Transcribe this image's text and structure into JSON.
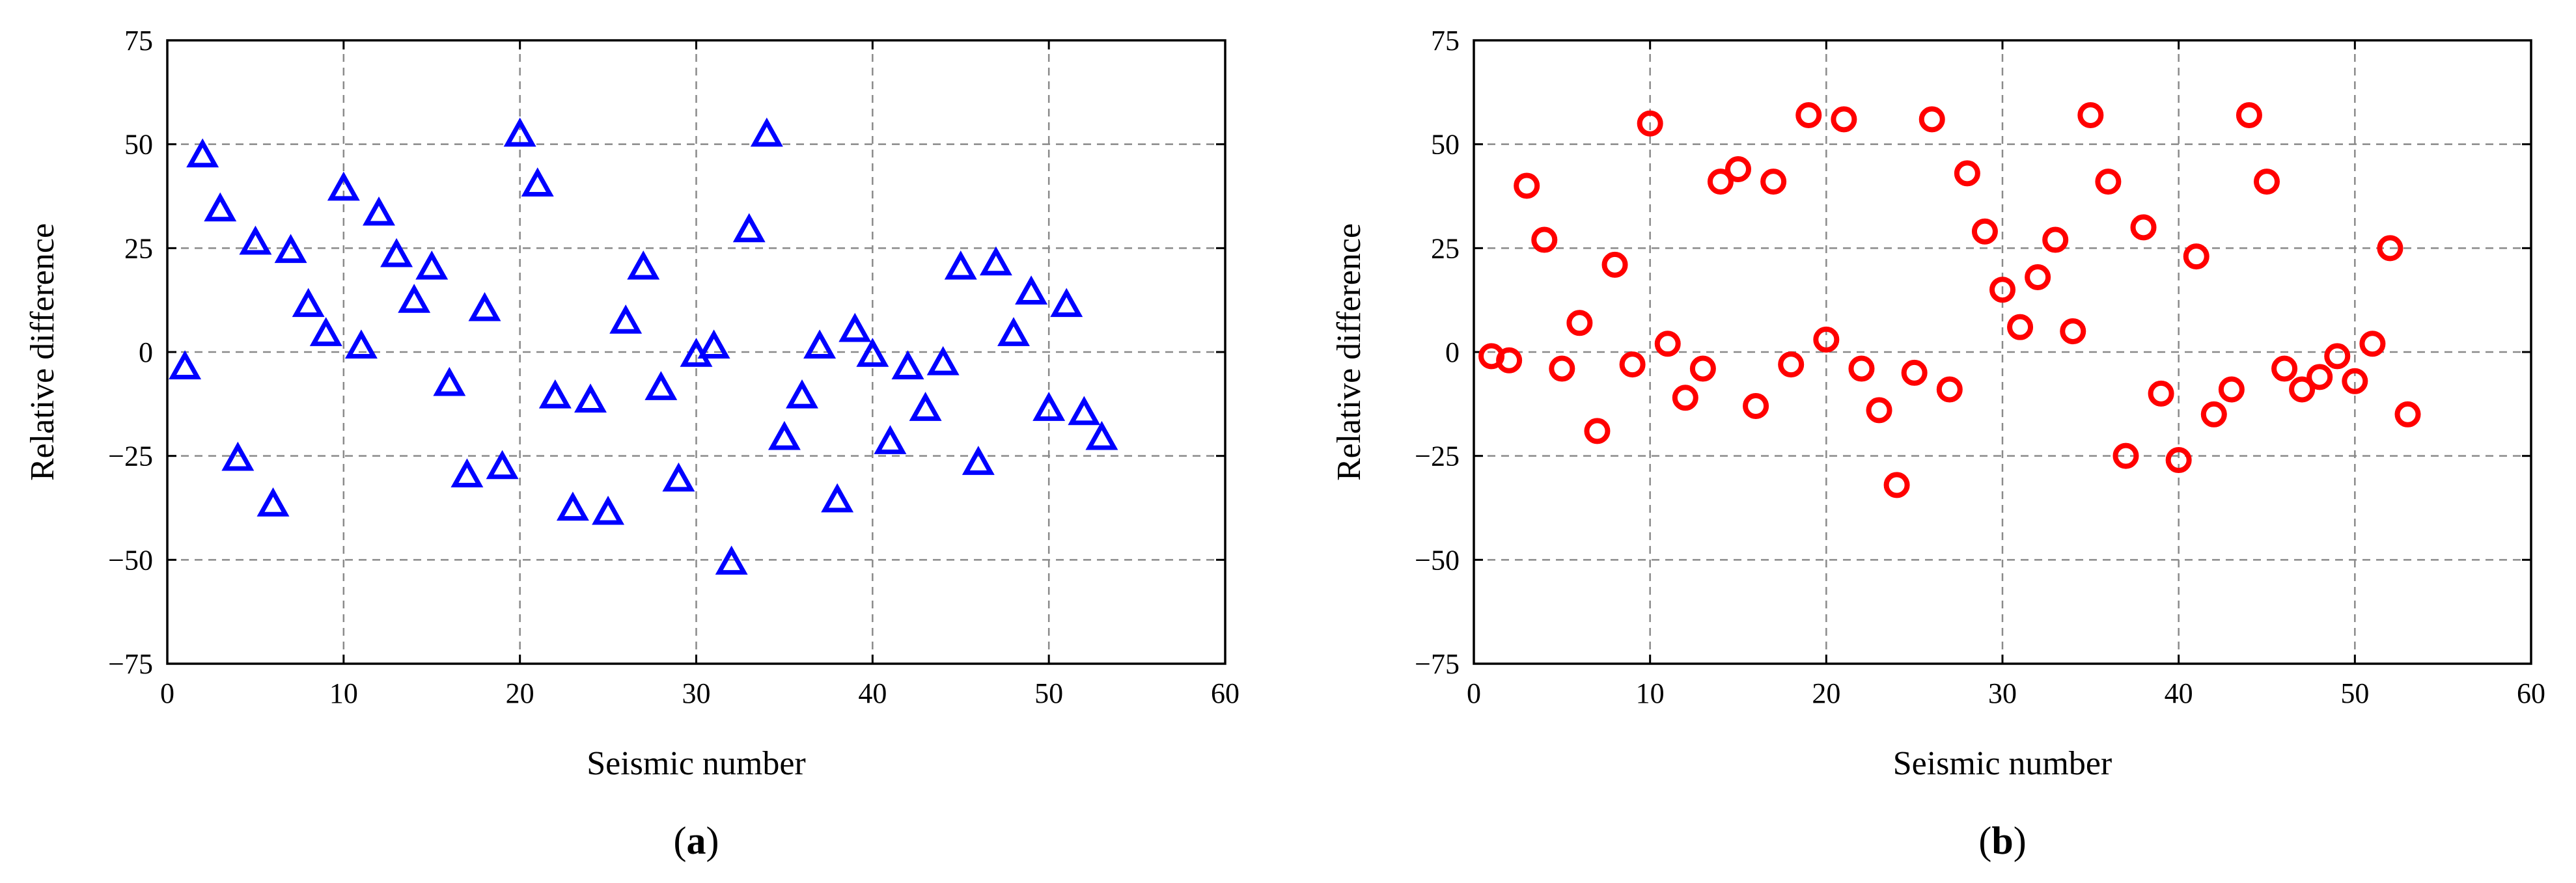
{
  "chart_data": [
    {
      "type": "scatter",
      "panel_label": "a",
      "xlabel": "Seismic number",
      "ylabel": "Relative difference",
      "xlim": [
        0,
        60
      ],
      "ylim": [
        -75,
        75
      ],
      "xticks": [
        "0",
        "10",
        "20",
        "30",
        "40",
        "50",
        "60"
      ],
      "yticks": [
        "75",
        "50",
        "25",
        "0",
        "−25",
        "−50",
        "−75"
      ],
      "grid": true,
      "marker": "triangle-open",
      "color": "#0000ff",
      "series": [
        {
          "x": [
            1,
            2,
            3,
            4,
            5,
            6,
            7,
            8,
            9,
            10,
            11,
            12,
            13,
            14,
            15,
            16,
            17,
            18,
            19,
            20,
            21,
            22,
            23,
            24,
            25,
            26,
            27,
            28,
            29,
            30,
            31,
            32,
            33,
            34,
            35,
            36,
            37,
            38,
            39,
            40,
            41,
            42,
            43,
            44,
            45,
            46,
            47,
            48,
            49,
            50,
            51,
            52,
            53
          ],
          "y": [
            -4,
            47,
            34,
            -26,
            26,
            -37,
            24,
            11,
            4,
            39,
            1,
            33,
            23,
            12,
            20,
            -8,
            -30,
            10,
            -28,
            52,
            40,
            -11,
            -38,
            -12,
            -39,
            7,
            20,
            -9,
            -31,
            -1,
            1,
            -51,
            29,
            52,
            -21,
            -11,
            1,
            -36,
            5,
            -1,
            -22,
            -4,
            -14,
            -3,
            20,
            -27,
            21,
            4,
            14,
            -14,
            11,
            -15,
            -21
          ]
        }
      ]
    },
    {
      "type": "scatter",
      "panel_label": "b",
      "xlabel": "Seismic number",
      "ylabel": "Relative difference",
      "xlim": [
        0,
        60
      ],
      "ylim": [
        -75,
        75
      ],
      "xticks": [
        "0",
        "10",
        "20",
        "30",
        "40",
        "50",
        "60"
      ],
      "yticks": [
        "75",
        "50",
        "25",
        "0",
        "−25",
        "−50",
        "−75"
      ],
      "grid": true,
      "marker": "circle-open",
      "color": "#ff0000",
      "series": [
        {
          "x": [
            1,
            2,
            3,
            4,
            5,
            6,
            7,
            8,
            9,
            10,
            11,
            12,
            13,
            14,
            15,
            16,
            17,
            18,
            19,
            20,
            21,
            22,
            23,
            24,
            25,
            26,
            27,
            28,
            29,
            30,
            31,
            32,
            33,
            34,
            35,
            36,
            37,
            38,
            39,
            40,
            41,
            42,
            43,
            44,
            45,
            46,
            47,
            48,
            49,
            50,
            51,
            52,
            53
          ],
          "y": [
            -1,
            -2,
            40,
            27,
            -4,
            7,
            -19,
            21,
            -3,
            55,
            2,
            -11,
            -4,
            41,
            44,
            -13,
            41,
            -3,
            57,
            3,
            56,
            -4,
            -14,
            -32,
            -5,
            56,
            -9,
            43,
            29,
            15,
            6,
            18,
            27,
            5,
            57,
            41,
            -25,
            30,
            -10,
            -26,
            23,
            -15,
            -9,
            57,
            41,
            -4,
            -9,
            -6,
            -1,
            -7,
            2,
            25,
            -15
          ]
        }
      ]
    }
  ]
}
